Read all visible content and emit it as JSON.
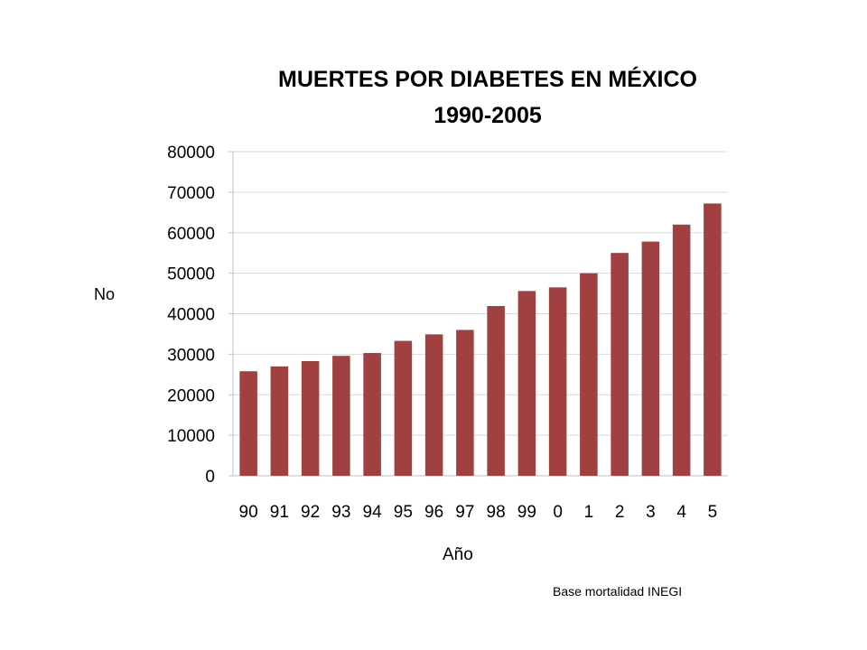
{
  "chart_data": {
    "type": "bar",
    "title_lines": [
      "MUERTES POR DIABETES  EN MÉXICO",
      "1990-2005"
    ],
    "xlabel": "Año",
    "ylabel": "No",
    "categories": [
      "90",
      "91",
      "92",
      "93",
      "94",
      "95",
      "96",
      "97",
      "98",
      "99",
      "0",
      "1",
      "2",
      "3",
      "4",
      "5"
    ],
    "values": [
      25800,
      27000,
      28300,
      29600,
      30300,
      33300,
      34900,
      36000,
      41900,
      45600,
      46500,
      50000,
      55000,
      57800,
      62000,
      67200
    ],
    "ylim": [
      0,
      80000
    ],
    "yticks": [
      "0",
      "10000",
      "20000",
      "30000",
      "40000",
      "50000",
      "60000",
      "70000",
      "80000"
    ],
    "grid": true,
    "legend": "none",
    "bar_color": "#a04040",
    "grid_color": "#d9d9d9"
  },
  "source_note": "Base mortalidad INEGI"
}
